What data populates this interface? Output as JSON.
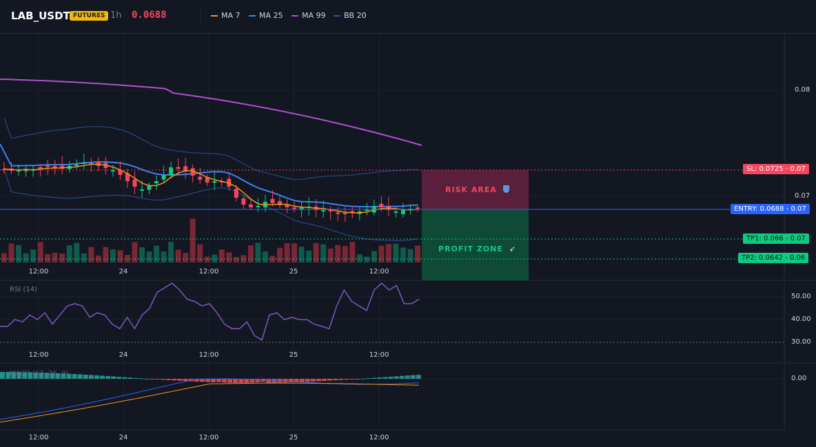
{
  "header": {
    "symbol": "LAB_USDT",
    "badge": "FUTURES",
    "timeframe": "1h",
    "last_price": "0.0688",
    "indicators": [
      {
        "label": "MA 7",
        "color": "#f7931a"
      },
      {
        "label": "MA 25",
        "color": "#3b82f6"
      },
      {
        "label": "MA 99",
        "color": "#b44fd4"
      },
      {
        "label": "BB 20",
        "color": "#2d4f9c"
      }
    ]
  },
  "price_axis": [
    "0.08",
    "0.07"
  ],
  "levels": {
    "sl": {
      "label": "SL: 0.0725 - 0.07",
      "value": 0.0725,
      "color": "#f6465d"
    },
    "entry": {
      "label": "ENTRY: 0.0688 - 0.07",
      "value": 0.0688,
      "color": "#2962ff"
    },
    "tp1": {
      "label": "TP1: 0.066 - 0.07",
      "value": 0.066,
      "color": "#0ecb81"
    },
    "tp2": {
      "label": "TP2: 0.0642 - 0.06",
      "value": 0.0642,
      "color": "#0ecb81"
    }
  },
  "zones": {
    "risk": {
      "label": "RISK AREA",
      "icon": "shield-icon"
    },
    "profit": {
      "label": "PROFIT ZONE",
      "icon": "rocket-icon"
    }
  },
  "time_axis": [
    "12:00",
    "24",
    "12:00",
    "25",
    "12:00"
  ],
  "rsi": {
    "title": "RSI (14)",
    "axis": [
      "50.00",
      "40.00",
      "30.00"
    ],
    "values": [
      37,
      37,
      40,
      39,
      42,
      40,
      43,
      38,
      42,
      46,
      47,
      46,
      41,
      43,
      42,
      38,
      36,
      41,
      36,
      42,
      45,
      52,
      54,
      56,
      53,
      49,
      48,
      46,
      47,
      43,
      38,
      36,
      36,
      39,
      33,
      31,
      42,
      43,
      40,
      41,
      40,
      40,
      38,
      37,
      36,
      46,
      53,
      48,
      46,
      44,
      53,
      56,
      53,
      55,
      47,
      47,
      49
    ]
  },
  "macd": {
    "title": "MACD (12, 26, 9)",
    "axis": [
      "0.00"
    ]
  }
}
